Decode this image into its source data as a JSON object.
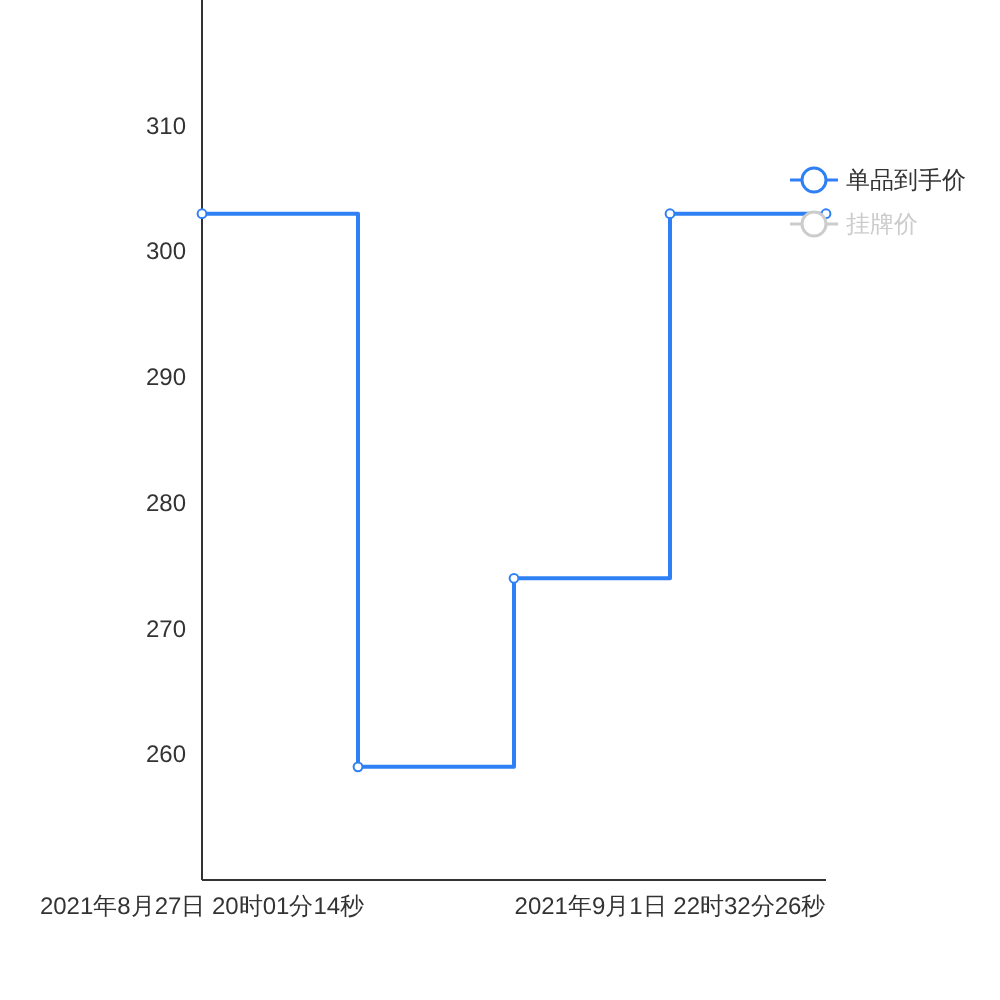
{
  "chart_data": {
    "type": "step",
    "categories": [
      "2021年8月27日 20时01分14秒",
      null,
      null,
      "2021年9月1日 22时32分26秒",
      null
    ],
    "series": [
      {
        "name": "单品到手价",
        "color": "#2f80f5",
        "values": [
          303,
          259,
          274,
          303,
          303
        ]
      },
      {
        "name": "挂牌价",
        "color": "#cccccc",
        "values": [
          null,
          null,
          null,
          null,
          null
        ]
      }
    ],
    "ylim": [
      250,
      320
    ],
    "yticks": [
      260,
      270,
      280,
      290,
      300,
      310
    ],
    "marker": "circle",
    "legend": "right",
    "grid": false
  }
}
